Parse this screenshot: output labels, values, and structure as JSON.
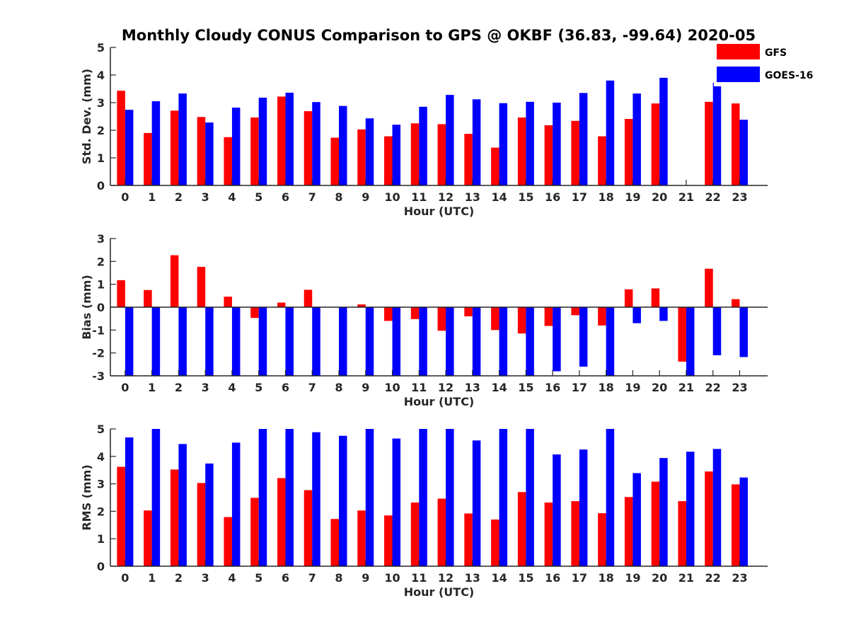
{
  "figure": {
    "title": "Monthly Cloudy CONUS Comparison to GPS @ OKBF (36.83, -99.64) 2020-05"
  },
  "legend": {
    "placement": "top-right",
    "items": [
      {
        "label": "GFS",
        "color": "#ff0000"
      },
      {
        "label": "GOES-16",
        "color": "#0000ff"
      }
    ]
  },
  "chart_data": [
    {
      "type": "bar",
      "xlabel": "Hour (UTC)",
      "ylabel": "Std. Dev. (mm)",
      "ylim": [
        0,
        5
      ],
      "yticks": [
        0,
        1,
        2,
        3,
        4,
        5
      ],
      "categories": [
        "0",
        "1",
        "2",
        "3",
        "4",
        "5",
        "6",
        "7",
        "8",
        "9",
        "10",
        "11",
        "12",
        "13",
        "14",
        "15",
        "16",
        "17",
        "18",
        "19",
        "20",
        "21",
        "22",
        "23"
      ],
      "series": [
        {
          "name": "GFS",
          "color": "#ff0000",
          "values": [
            3.43,
            1.9,
            2.71,
            2.48,
            1.75,
            2.46,
            3.22,
            2.69,
            1.73,
            2.03,
            1.78,
            2.25,
            2.22,
            1.87,
            1.37,
            2.46,
            2.18,
            2.34,
            1.78,
            2.41,
            2.97,
            0,
            3.03,
            2.97
          ]
        },
        {
          "name": "GOES-16",
          "color": "#0000ff",
          "values": [
            2.74,
            3.05,
            3.33,
            2.28,
            2.82,
            3.18,
            3.36,
            3.02,
            2.88,
            2.43,
            2.2,
            2.85,
            3.28,
            3.12,
            2.98,
            3.03,
            3.0,
            3.35,
            3.8,
            3.33,
            3.9,
            0,
            3.72,
            2.38
          ]
        }
      ],
      "grid": false
    },
    {
      "type": "bar",
      "xlabel": "Hour (UTC)",
      "ylabel": "Bias (mm)",
      "ylim": [
        -3,
        3
      ],
      "yticks": [
        -3,
        -2,
        -1,
        0,
        1,
        2,
        3
      ],
      "categories": [
        "0",
        "1",
        "2",
        "3",
        "4",
        "5",
        "6",
        "7",
        "8",
        "9",
        "10",
        "11",
        "12",
        "13",
        "14",
        "15",
        "16",
        "17",
        "18",
        "19",
        "20",
        "21",
        "22",
        "23"
      ],
      "series": [
        {
          "name": "GFS",
          "color": "#ff0000",
          "values": [
            1.18,
            0.75,
            2.27,
            1.76,
            0.46,
            -0.47,
            0.2,
            0.76,
            0,
            0.12,
            -0.6,
            -0.52,
            -1.03,
            -0.4,
            -1.0,
            -1.15,
            -0.82,
            -0.35,
            -0.8,
            0.78,
            0.82,
            -2.38,
            1.68,
            0.35
          ]
        },
        {
          "name": "GOES-16",
          "color": "#0000ff",
          "values": [
            -3,
            -3,
            -3,
            -3,
            -3,
            -3,
            -3,
            -3,
            -3,
            -3,
            -3,
            -3,
            -3,
            -3,
            -3,
            -3,
            -2.8,
            -2.6,
            -3,
            -0.7,
            -0.6,
            -3,
            -2.1,
            -2.18
          ]
        }
      ],
      "grid": false
    },
    {
      "type": "bar",
      "xlabel": "Hour (UTC)",
      "ylabel": "RMS (mm)",
      "ylim": [
        0,
        5
      ],
      "yticks": [
        0,
        1,
        2,
        3,
        4,
        5
      ],
      "categories": [
        "0",
        "1",
        "2",
        "3",
        "4",
        "5",
        "6",
        "7",
        "8",
        "9",
        "10",
        "11",
        "12",
        "13",
        "14",
        "15",
        "16",
        "17",
        "18",
        "19",
        "20",
        "21",
        "22",
        "23"
      ],
      "series": [
        {
          "name": "GFS",
          "color": "#ff0000",
          "values": [
            3.62,
            2.03,
            3.52,
            3.03,
            1.79,
            2.49,
            3.21,
            2.77,
            1.72,
            2.03,
            1.85,
            2.32,
            2.46,
            1.92,
            1.7,
            2.7,
            2.32,
            2.37,
            1.93,
            2.52,
            3.08,
            2.37,
            3.45,
            2.98
          ]
        },
        {
          "name": "GOES-16",
          "color": "#0000ff",
          "values": [
            4.69,
            5.0,
            4.45,
            3.74,
            4.5,
            5.0,
            5.0,
            4.88,
            4.75,
            5.0,
            4.65,
            5.0,
            5.0,
            4.58,
            5.0,
            5.0,
            4.07,
            4.25,
            5.0,
            3.39,
            3.94,
            4.17,
            4.27,
            3.23
          ]
        }
      ],
      "grid": false
    }
  ]
}
